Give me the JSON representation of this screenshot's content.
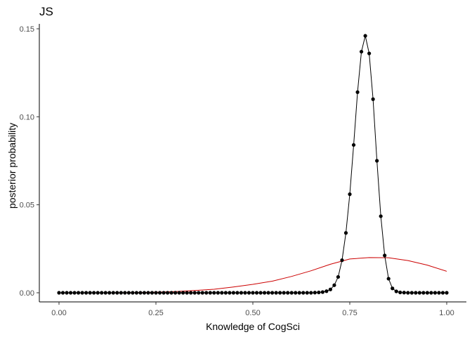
{
  "chart_data": {
    "type": "line",
    "title": "JS",
    "xlabel": "Knowledge of CogSci",
    "ylabel": "posterior probability",
    "xlim": [
      0,
      1
    ],
    "ylim": [
      0,
      0.152
    ],
    "x_ticks": [
      0,
      0.25,
      0.5,
      0.75,
      1
    ],
    "x_tick_labels": [
      "0.00",
      "0.25",
      "0.50",
      "0.75",
      "1.00"
    ],
    "y_ticks": [
      0,
      0.05,
      0.1,
      0.15
    ],
    "y_tick_labels": [
      "0.00",
      "0.05",
      "0.10",
      "0.15"
    ],
    "grid": false,
    "legend": "none",
    "colors": {
      "posterior": "#000000",
      "prior": "#cc0000"
    },
    "series": [
      {
        "role": "posterior",
        "style": "line+points",
        "x": [
          0,
          0.01,
          0.02,
          0.03,
          0.04,
          0.05,
          0.06,
          0.07,
          0.08,
          0.09,
          0.1,
          0.11,
          0.12,
          0.13,
          0.14,
          0.15,
          0.16,
          0.17,
          0.18,
          0.19,
          0.2,
          0.21,
          0.22,
          0.23,
          0.24,
          0.25,
          0.26,
          0.27,
          0.28,
          0.29,
          0.3,
          0.31,
          0.32,
          0.33,
          0.34,
          0.35,
          0.36,
          0.37,
          0.38,
          0.39,
          0.4,
          0.41,
          0.42,
          0.43,
          0.44,
          0.45,
          0.46,
          0.47,
          0.48,
          0.49,
          0.5,
          0.51,
          0.52,
          0.53,
          0.54,
          0.55,
          0.56,
          0.57,
          0.58,
          0.59,
          0.6,
          0.61,
          0.62,
          0.63,
          0.64,
          0.65,
          0.66,
          0.67,
          0.68,
          0.69,
          0.7,
          0.71,
          0.72,
          0.73,
          0.74,
          0.75,
          0.76,
          0.77,
          0.78,
          0.79,
          0.8,
          0.81,
          0.82,
          0.83,
          0.84,
          0.85,
          0.86,
          0.87,
          0.88,
          0.89,
          0.9,
          0.91,
          0.92,
          0.93,
          0.94,
          0.95,
          0.96,
          0.97,
          0.98,
          0.99,
          1
        ],
        "y": [
          0,
          0,
          0,
          0,
          0,
          0,
          0,
          0,
          0,
          0,
          0,
          0,
          0,
          0,
          0,
          0,
          0,
          0,
          0,
          0,
          0,
          0,
          0,
          0,
          0,
          0,
          0,
          0,
          0,
          0,
          0,
          0,
          0,
          0,
          0,
          0,
          0,
          0,
          0,
          0,
          0,
          0,
          0,
          0,
          0,
          0,
          0,
          0,
          0,
          0,
          0,
          0,
          0,
          0,
          0,
          0,
          0,
          0,
          0,
          0,
          0,
          0,
          0,
          0,
          0,
          0,
          0.0001,
          0.0002,
          0.0004,
          0.0009,
          0.0019,
          0.0043,
          0.009,
          0.0185,
          0.034,
          0.056,
          0.084,
          0.114,
          0.137,
          0.146,
          0.136,
          0.11,
          0.075,
          0.0435,
          0.0212,
          0.008,
          0.0025,
          0.0008,
          0.0002,
          0.0001,
          0,
          0,
          0,
          0,
          0,
          0,
          0,
          0,
          0,
          0,
          0
        ]
      },
      {
        "role": "prior",
        "style": "line",
        "x": [
          0,
          0.05,
          0.1,
          0.15,
          0.2,
          0.25,
          0.3,
          0.35,
          0.4,
          0.45,
          0.5,
          0.55,
          0.6,
          0.65,
          0.7,
          0.75,
          0.8,
          0.85,
          0.9,
          0.95,
          1
        ],
        "y": [
          0,
          0,
          0,
          5e-05,
          0.0001,
          0.0003,
          0.0007,
          0.0013,
          0.002,
          0.0033,
          0.0048,
          0.0066,
          0.0093,
          0.0125,
          0.0162,
          0.0192,
          0.02,
          0.0199,
          0.0183,
          0.0157,
          0.0122
        ]
      }
    ]
  }
}
